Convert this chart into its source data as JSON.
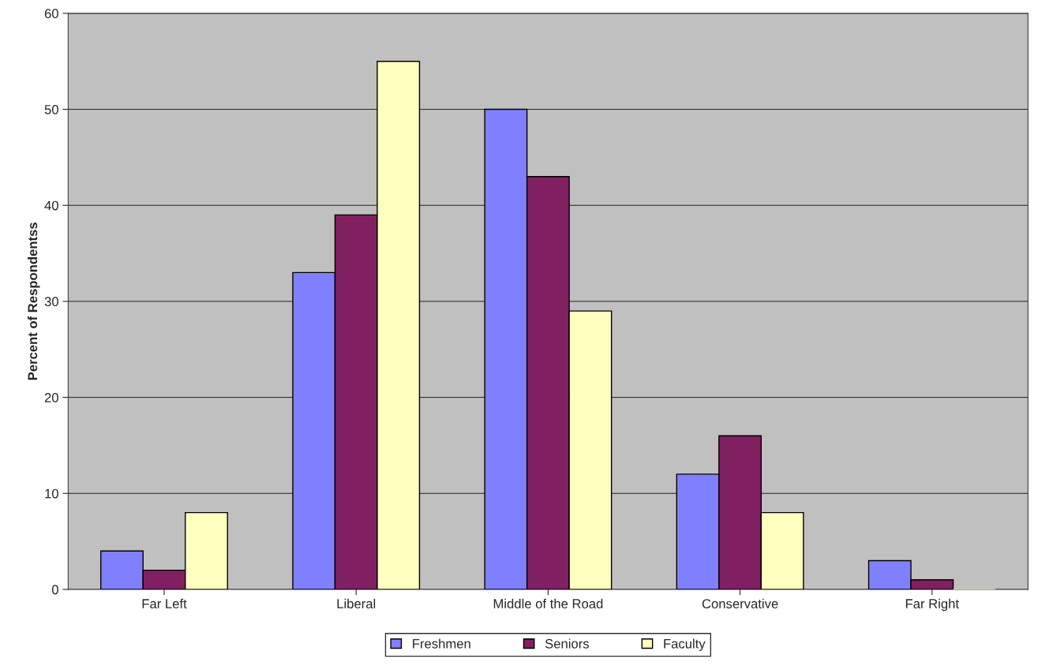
{
  "chart_data": {
    "type": "bar",
    "ylabel": "Percent of Respondentss",
    "categories": [
      "Far Left",
      "Liberal",
      "Middle of the Road",
      "Conservative",
      "Far Right"
    ],
    "series": [
      {
        "name": "Freshmen",
        "color": "#8080ff",
        "values": [
          4,
          33,
          50,
          12,
          3
        ]
      },
      {
        "name": "Seniors",
        "color": "#802060",
        "values": [
          2,
          39,
          43,
          16,
          1
        ]
      },
      {
        "name": "Faculty",
        "color": "#ffffc0",
        "values": [
          8,
          55,
          29,
          8,
          0
        ]
      }
    ],
    "ylim": [
      0,
      60
    ],
    "yticks": [
      0,
      10,
      20,
      30,
      40,
      50,
      60
    ],
    "grid": "y",
    "legend": "bottom"
  }
}
